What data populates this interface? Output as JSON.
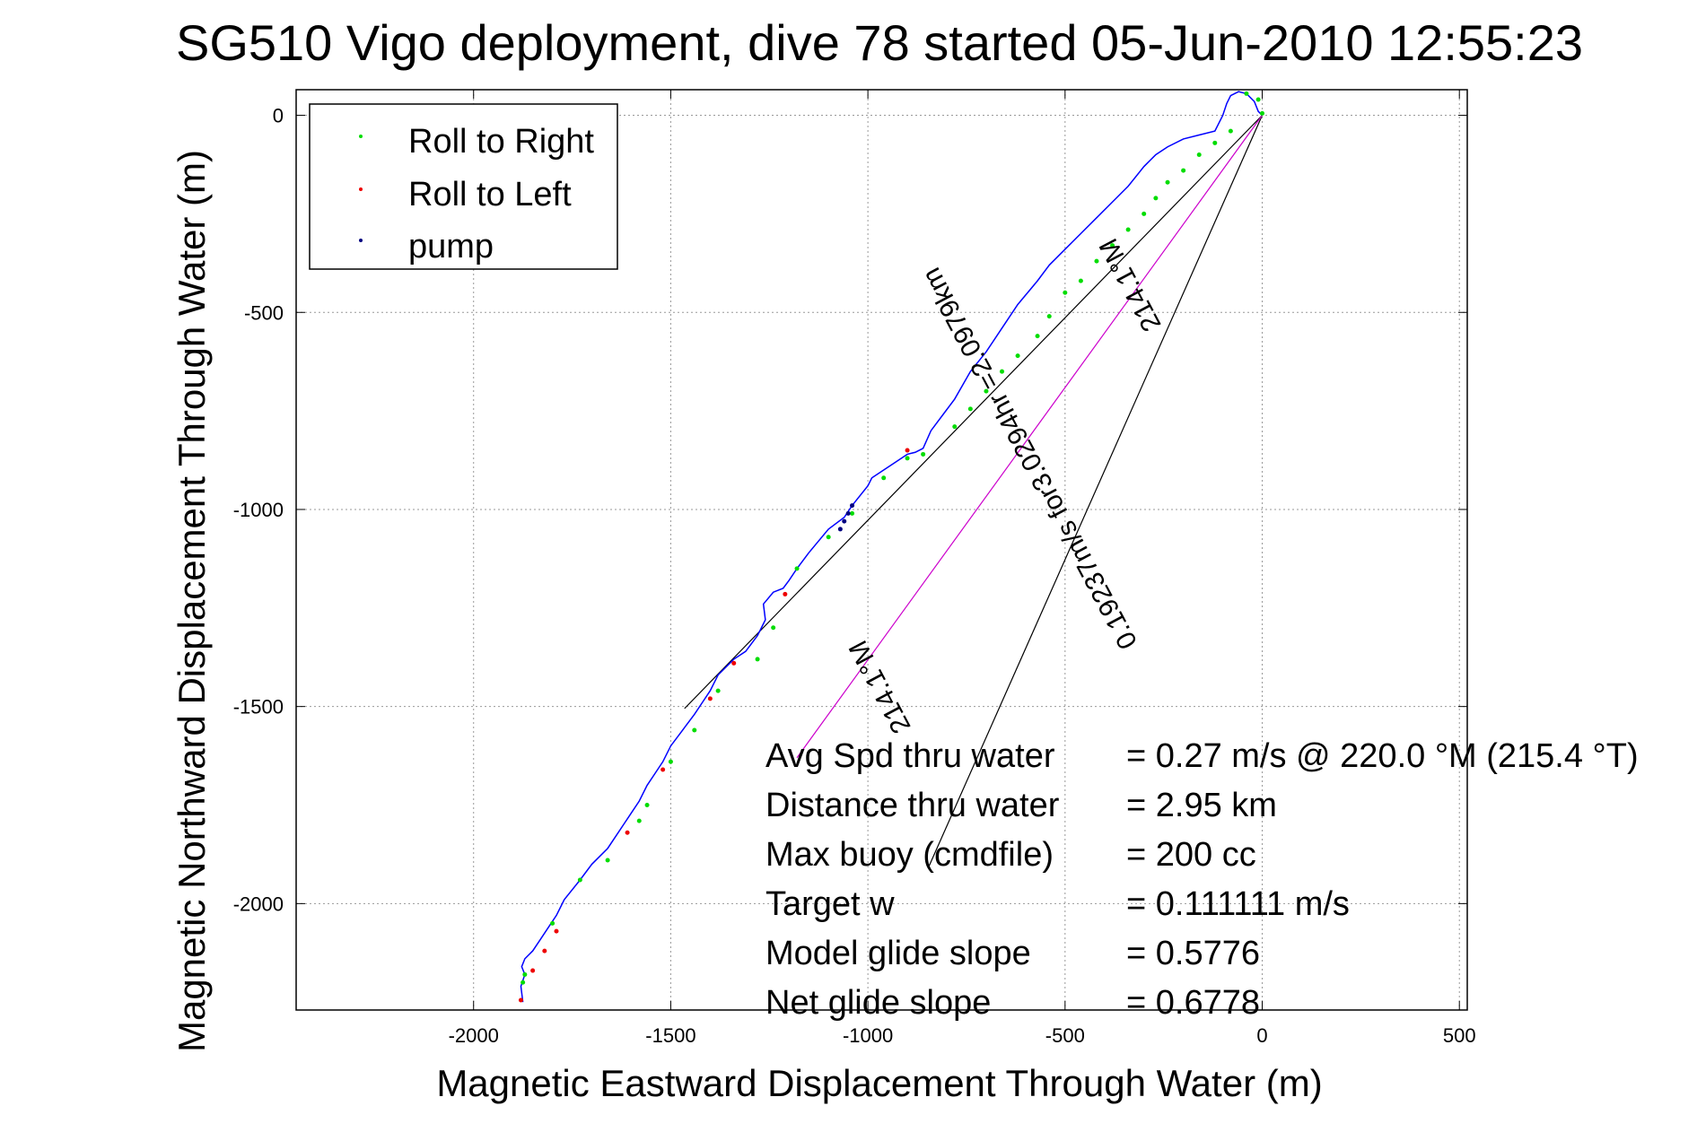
{
  "chart_data": {
    "type": "scatter",
    "title": "SG510 Vigo deployment, dive 78 started 05-Jun-2010 12:55:23",
    "xlabel": "Magnetic Eastward Displacement Through Water (m)",
    "ylabel": "Magnetic Northward Displacement Through Water (m)",
    "xlim": [
      -2450,
      520
    ],
    "ylim": [
      -2270,
      65
    ],
    "xticks": [
      -2000,
      -1500,
      -1000,
      -500,
      0,
      500
    ],
    "yticks": [
      0,
      -500,
      -1000,
      -1500,
      -2000
    ],
    "xtick_labels": [
      "-2000",
      "-1500",
      "-1000",
      "-500",
      "0",
      "500"
    ],
    "ytick_labels": [
      "0",
      "-500",
      "-1000",
      "-1500",
      "-2000"
    ],
    "grid": true,
    "legend_position": "top-left",
    "legend": [
      {
        "label": "Roll to Right",
        "color": "#00dd00"
      },
      {
        "label": "Roll to Left",
        "color": "#ee0000"
      },
      {
        "label": "pump",
        "color": "#000080"
      }
    ],
    "track": {
      "color": "#0000ff",
      "x": [
        -1875,
        -1880,
        -1870,
        -1878,
        -1870,
        -1850,
        -1830,
        -1810,
        -1790,
        -1770,
        -1730,
        -1700,
        -1660,
        -1640,
        -1620,
        -1600,
        -1580,
        -1560,
        -1540,
        -1520,
        -1500,
        -1470,
        -1440,
        -1420,
        -1400,
        -1380,
        -1360,
        -1340,
        -1310,
        -1280,
        -1260,
        -1265,
        -1240,
        -1215,
        -1200,
        -1180,
        -1150,
        -1100,
        -1060,
        -1040,
        -1000,
        -990,
        -960,
        -930,
        -900,
        -880,
        -870,
        -860,
        -840,
        -810,
        -780,
        -740,
        -700,
        -660,
        -620,
        -570,
        -540,
        -500,
        -460,
        -420,
        -380,
        -340,
        -300,
        -270,
        -240,
        -200,
        -160,
        -120,
        -100,
        -90,
        -80,
        -60,
        -40,
        -20,
        -10,
        0
      ],
      "y": [
        -2250,
        -2210,
        -2180,
        -2160,
        -2140,
        -2120,
        -2090,
        -2060,
        -2030,
        -1990,
        -1940,
        -1900,
        -1860,
        -1830,
        -1800,
        -1770,
        -1740,
        -1700,
        -1670,
        -1640,
        -1600,
        -1560,
        -1520,
        -1490,
        -1460,
        -1420,
        -1400,
        -1380,
        -1360,
        -1320,
        -1280,
        -1240,
        -1210,
        -1200,
        -1180,
        -1150,
        -1110,
        -1050,
        -1020,
        -990,
        -940,
        -920,
        -900,
        -880,
        -860,
        -855,
        -850,
        -845,
        -800,
        -760,
        -720,
        -650,
        -600,
        -540,
        -480,
        -420,
        -380,
        -340,
        -300,
        -260,
        -220,
        -180,
        -130,
        -100,
        -80,
        -60,
        -50,
        -40,
        0,
        30,
        50,
        60,
        55,
        35,
        10,
        0
      ]
    },
    "roll_right_points": {
      "color": "#00dd00",
      "x": [
        -1875,
        -1870,
        -1800,
        -1730,
        -1660,
        -1580,
        -1560,
        -1500,
        -1440,
        -1380,
        -1280,
        -1240,
        -1180,
        -1100,
        -1040,
        -960,
        -900,
        -860,
        -780,
        -740,
        -700,
        -660,
        -620,
        -570,
        -540,
        -500,
        -460,
        -420,
        -380,
        -340,
        -300,
        -270,
        -240,
        -200,
        -160,
        -120,
        -80,
        -40,
        -10,
        0
      ],
      "y": [
        -2200,
        -2180,
        -2050,
        -1940,
        -1890,
        -1790,
        -1750,
        -1640,
        -1560,
        -1460,
        -1380,
        -1300,
        -1150,
        -1070,
        -1010,
        -920,
        -870,
        -860,
        -790,
        -745,
        -700,
        -650,
        -610,
        -560,
        -510,
        -450,
        -420,
        -370,
        -330,
        -290,
        -250,
        -210,
        -170,
        -140,
        -100,
        -70,
        -40,
        55,
        40,
        5
      ]
    },
    "roll_left_points": {
      "color": "#ee0000",
      "x": [
        -1880,
        -1850,
        -1820,
        -1790,
        -1610,
        -1520,
        -1400,
        -1340,
        -1210,
        -900
      ],
      "y": [
        -2245,
        -2170,
        -2120,
        -2070,
        -1820,
        -1660,
        -1480,
        -1390,
        -1215,
        -850
      ]
    },
    "pump_points": {
      "color": "#000080",
      "x": [
        -1070,
        -1060,
        -1050,
        -1040
      ],
      "y": [
        -1050,
        -1030,
        -1010,
        -990
      ]
    },
    "reference_lines": [
      {
        "x": [
          0,
          -1465
        ],
        "y": [
          0,
          -1505
        ],
        "color": "#000000"
      },
      {
        "x": [
          0,
          -845
        ],
        "y": [
          0,
          -1905
        ],
        "color": "#000000"
      },
      {
        "x": [
          0,
          -1180
        ],
        "y": [
          0,
          -1630
        ],
        "color": "#cc00cc"
      }
    ],
    "rotated_text": [
      {
        "text": "0.19237m/s for3.0294hr =2.0979km",
        "x": -570,
        "y": -860,
        "angle": 62
      },
      {
        "text": "214.1°M",
        "x": -315,
        "y": -420,
        "angle": 62
      },
      {
        "text": "214.1°M",
        "x": -950,
        "y": -1440,
        "angle": 62
      }
    ],
    "annotations": [
      {
        "label": "Avg Spd thru water",
        "value": "=  0.27 m/s @ 220.0 °M (215.4 °T)"
      },
      {
        "label": "Distance thru water",
        "value": "=  2.95 km"
      },
      {
        "label": "Max buoy (cmdfile)",
        "value": "= 200 cc"
      },
      {
        "label": "Target w",
        "value": "= 0.111111 m/s"
      },
      {
        "label": "Model glide slope",
        "value": "= 0.5776"
      },
      {
        "label": "Net glide slope",
        "value": "= 0.6778"
      }
    ]
  }
}
